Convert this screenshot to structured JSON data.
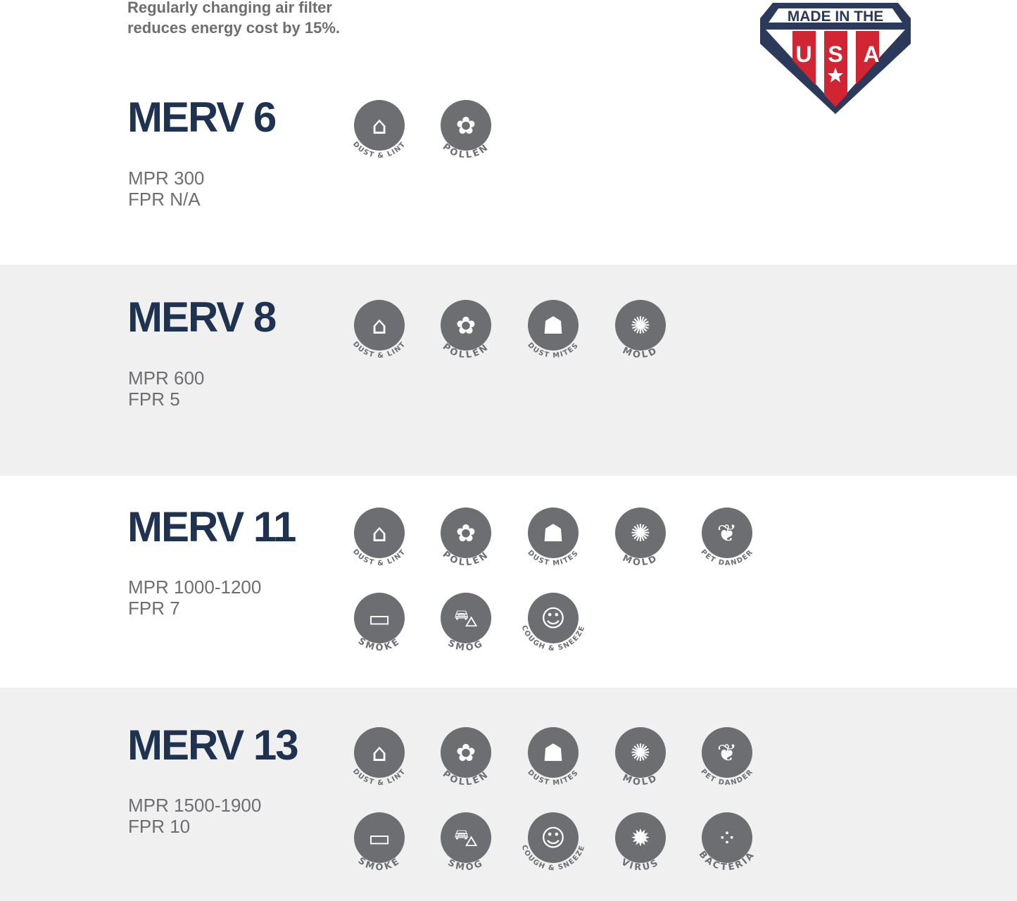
{
  "intro": {
    "line1": "Regularly changing air filter",
    "line2": "reduces energy cost by 15%."
  },
  "badge": {
    "top": "MADE IN THE",
    "letters": [
      "U",
      "S",
      "A"
    ],
    "colors": {
      "navy": "#2b3a5a",
      "red": "#d12533"
    }
  },
  "colors": {
    "title": "#1f3350",
    "text": "#6d6e71",
    "icon": "#6d6e71",
    "band": "#f0f0f0"
  },
  "sections": [
    {
      "title": "MERV 6",
      "mpr": "MPR 300",
      "fpr": "FPR N/A",
      "icons": [
        {
          "label": "DUST & LINT",
          "icon": "dustpan-icon"
        },
        {
          "label": "POLLEN",
          "icon": "flower-icon"
        }
      ]
    },
    {
      "title": "MERV 8",
      "mpr": "MPR 600",
      "fpr": "FPR 5",
      "icons": [
        {
          "label": "DUST & LINT",
          "icon": "dustpan-icon"
        },
        {
          "label": "POLLEN",
          "icon": "flower-icon"
        },
        {
          "label": "DUST MITES",
          "icon": "bug-icon"
        },
        {
          "label": "MOLD",
          "icon": "mold-icon"
        }
      ]
    },
    {
      "title": "MERV 11",
      "mpr": "MPR 1000-1200",
      "fpr": "FPR 7",
      "icons": [
        {
          "label": "DUST & LINT",
          "icon": "dustpan-icon"
        },
        {
          "label": "POLLEN",
          "icon": "flower-icon"
        },
        {
          "label": "DUST MITES",
          "icon": "bug-icon"
        },
        {
          "label": "MOLD",
          "icon": "mold-icon"
        },
        {
          "label": "PET DANDER",
          "icon": "paw-icon"
        },
        {
          "label": "SMOKE",
          "icon": "cigarette-icon"
        },
        {
          "label": "SMOG",
          "icon": "car-icon"
        },
        {
          "label": "COUGH & SNEEZE",
          "icon": "head-icon"
        }
      ]
    },
    {
      "title": "MERV 13",
      "mpr": "MPR 1500-1900",
      "fpr": "FPR 10",
      "icons": [
        {
          "label": "DUST & LINT",
          "icon": "dustpan-icon"
        },
        {
          "label": "POLLEN",
          "icon": "flower-icon"
        },
        {
          "label": "DUST MITES",
          "icon": "bug-icon"
        },
        {
          "label": "MOLD",
          "icon": "mold-icon"
        },
        {
          "label": "PET DANDER",
          "icon": "paw-icon"
        },
        {
          "label": "SMOKE",
          "icon": "cigarette-icon"
        },
        {
          "label": "SMOG",
          "icon": "car-icon"
        },
        {
          "label": "COUGH & SNEEZE",
          "icon": "head-icon"
        },
        {
          "label": "VIRUS",
          "icon": "virus-icon"
        },
        {
          "label": "BACTERIA",
          "icon": "bacteria-icon"
        }
      ]
    }
  ]
}
